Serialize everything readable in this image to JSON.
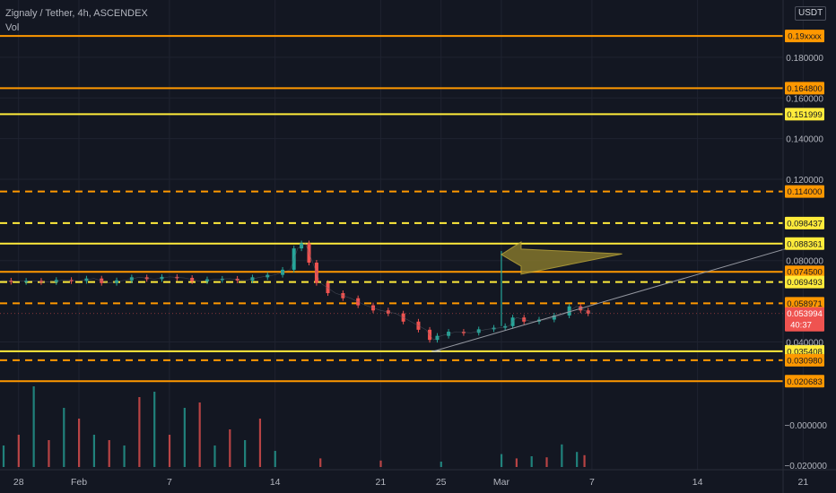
{
  "header": {
    "title": "Zignaly / Tether, 4h, ASCENDEX",
    "volume_label": "Vol",
    "currency": "USDT"
  },
  "colors": {
    "background": "#131722",
    "up": "#26a69a",
    "down": "#ef5350",
    "level_yellow": "#ffeb3b",
    "level_orange": "#ff9800",
    "axis_text": "#b2b5be",
    "last_price_bg": "#ef5350"
  },
  "chart_data": {
    "type": "line",
    "title": "Zignaly / Tether, 4h, ASCENDEX",
    "price_axis": {
      "range": [
        0.015,
        0.195
      ],
      "ticks": [
        "0.180000",
        "0.160000",
        "0.140000",
        "0.120000",
        "0.080000",
        "0.040000"
      ]
    },
    "volume_axis": {
      "ticks": [
        "−0.000000",
        "−0.020000"
      ]
    },
    "x_axis": {
      "labels": [
        "28",
        "Feb",
        "7",
        "14",
        "21",
        "25",
        "Mar",
        "7",
        "14",
        "21"
      ],
      "label_days": [
        -4,
        0,
        6,
        13,
        20,
        24,
        28,
        34,
        41,
        48
      ]
    },
    "horizontal_levels": [
      {
        "label": "0.19xxxx",
        "value": 0.1905,
        "color": "orange",
        "style": "solid"
      },
      {
        "label": "0.164800",
        "value": 0.1648,
        "color": "orange",
        "style": "solid"
      },
      {
        "label": "0.151999",
        "value": 0.151999,
        "color": "yellow",
        "style": "solid"
      },
      {
        "label": "0.114000",
        "value": 0.114,
        "color": "orange",
        "style": "dashed"
      },
      {
        "label": "0.098437",
        "value": 0.098437,
        "color": "yellow",
        "style": "dashed"
      },
      {
        "label": "0.088361",
        "value": 0.088361,
        "color": "yellow",
        "style": "solid"
      },
      {
        "label": "0.074500",
        "value": 0.0745,
        "color": "orange",
        "style": "solid"
      },
      {
        "label": "0.069493",
        "value": 0.069493,
        "color": "yellow",
        "style": "dashed"
      },
      {
        "label": "0.058971",
        "value": 0.058971,
        "color": "orange",
        "style": "dashed"
      },
      {
        "label": "0.035408",
        "value": 0.035408,
        "color": "yellow",
        "style": "solid"
      },
      {
        "label": "0.030980",
        "value": 0.03098,
        "color": "orange",
        "style": "dashed"
      },
      {
        "label": "0.020683",
        "value": 0.020683,
        "color": "orange",
        "style": "solid"
      }
    ],
    "last_price": {
      "value": "0.053994",
      "countdown": "40:37"
    },
    "price_series": {
      "name": "",
      "points": [
        [
          -6,
          0.0695
        ],
        [
          -5,
          0.0702
        ],
        [
          -4,
          0.0698
        ],
        [
          -3,
          0.0701
        ],
        [
          -2,
          0.0694
        ],
        [
          -1,
          0.0705
        ],
        [
          0,
          0.07
        ],
        [
          1,
          0.0712
        ],
        [
          2,
          0.069
        ],
        [
          3,
          0.0703
        ],
        [
          4,
          0.0718
        ],
        [
          5,
          0.0709
        ],
        [
          6,
          0.072
        ],
        [
          7,
          0.0715
        ],
        [
          8,
          0.0698
        ],
        [
          9,
          0.0708
        ],
        [
          10,
          0.0711
        ],
        [
          11,
          0.0702
        ],
        [
          12,
          0.0718
        ],
        [
          13,
          0.073
        ],
        [
          14,
          0.0755
        ],
        [
          14.5,
          0.086
        ],
        [
          15,
          0.0885
        ],
        [
          15.5,
          0.079
        ],
        [
          16,
          0.069
        ],
        [
          17,
          0.064
        ],
        [
          18,
          0.0615
        ],
        [
          19,
          0.058
        ],
        [
          20,
          0.0555
        ],
        [
          21,
          0.054
        ],
        [
          22,
          0.05
        ],
        [
          23,
          0.046
        ],
        [
          23.5,
          0.041
        ],
        [
          24,
          0.043
        ],
        [
          25,
          0.045
        ],
        [
          26,
          0.0445
        ],
        [
          27,
          0.0462
        ],
        [
          28,
          0.047
        ],
        [
          28.5,
          0.0478
        ],
        [
          29,
          0.052
        ],
        [
          30,
          0.05
        ],
        [
          31,
          0.051
        ],
        [
          32,
          0.053
        ],
        [
          33,
          0.0575
        ],
        [
          33.5,
          0.0555
        ],
        [
          34,
          0.054
        ]
      ]
    },
    "trendline": {
      "from": [
        23.5,
        0.0354
      ],
      "to": [
        48,
        0.0883
      ]
    },
    "spike": {
      "x": 28,
      "from": 0.0478,
      "to": 0.0847
    },
    "arrow": {
      "tip": [
        28,
        0.083
      ],
      "tail": [
        36,
        0.082
      ]
    },
    "volume_bars": [
      {
        "x": -6,
        "v": 0.9,
        "dir": "down"
      },
      {
        "x": -5,
        "v": 0.2,
        "dir": "up"
      },
      {
        "x": -4,
        "v": 0.3,
        "dir": "down"
      },
      {
        "x": -3,
        "v": 0.75,
        "dir": "up"
      },
      {
        "x": -2,
        "v": 0.25,
        "dir": "down"
      },
      {
        "x": -1,
        "v": 0.55,
        "dir": "up"
      },
      {
        "x": 0,
        "v": 0.45,
        "dir": "down"
      },
      {
        "x": 1,
        "v": 0.3,
        "dir": "up"
      },
      {
        "x": 2,
        "v": 0.25,
        "dir": "down"
      },
      {
        "x": 3,
        "v": 0.2,
        "dir": "up"
      },
      {
        "x": 4,
        "v": 0.65,
        "dir": "down"
      },
      {
        "x": 5,
        "v": 0.7,
        "dir": "up"
      },
      {
        "x": 6,
        "v": 0.3,
        "dir": "down"
      },
      {
        "x": 7,
        "v": 0.55,
        "dir": "up"
      },
      {
        "x": 8,
        "v": 0.6,
        "dir": "down"
      },
      {
        "x": 9,
        "v": 0.2,
        "dir": "up"
      },
      {
        "x": 10,
        "v": 0.35,
        "dir": "down"
      },
      {
        "x": 11,
        "v": 0.25,
        "dir": "up"
      },
      {
        "x": 12,
        "v": 0.45,
        "dir": "down"
      },
      {
        "x": 13,
        "v": 0.15,
        "dir": "up"
      },
      {
        "x": 16,
        "v": 0.08,
        "dir": "down"
      },
      {
        "x": 20,
        "v": 0.06,
        "dir": "down"
      },
      {
        "x": 24,
        "v": 0.05,
        "dir": "up"
      },
      {
        "x": 28,
        "v": 0.12,
        "dir": "up"
      },
      {
        "x": 29,
        "v": 0.08,
        "dir": "down"
      },
      {
        "x": 30,
        "v": 0.1,
        "dir": "up"
      },
      {
        "x": 31,
        "v": 0.09,
        "dir": "down"
      },
      {
        "x": 32,
        "v": 0.21,
        "dir": "up"
      },
      {
        "x": 33,
        "v": 0.14,
        "dir": "up"
      },
      {
        "x": 33.5,
        "v": 0.11,
        "dir": "down"
      }
    ],
    "grid": true,
    "legend": "none"
  }
}
